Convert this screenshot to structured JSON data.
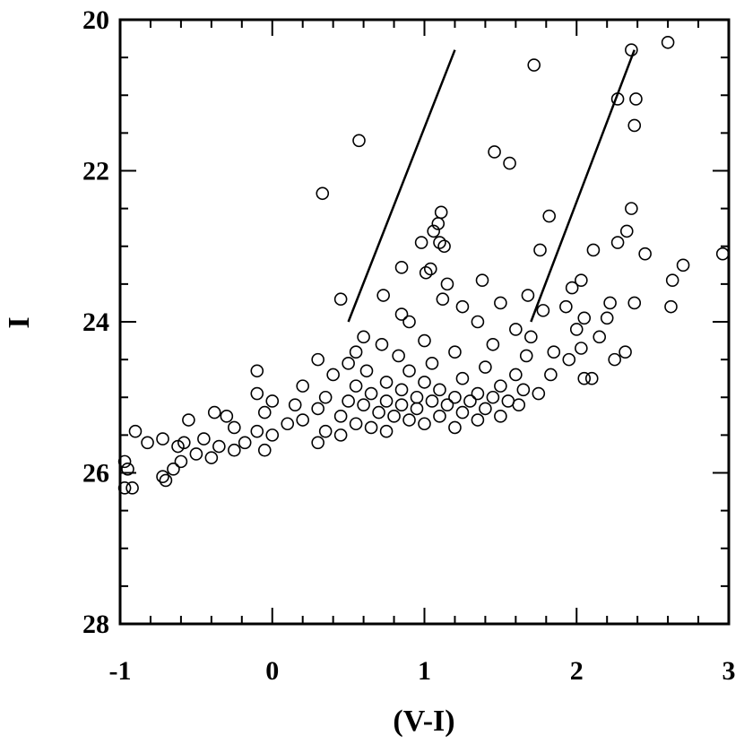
{
  "chart_data": {
    "type": "scatter",
    "title": "",
    "xlabel": "(V-I)",
    "ylabel": "I",
    "xlim": [
      -1,
      3
    ],
    "ylim": [
      28,
      20
    ],
    "y_inverted": true,
    "grid": false,
    "legend": "none",
    "xticks": [
      -1,
      0,
      1,
      2,
      3
    ],
    "xtick_labels": [
      "-1",
      "0",
      "1",
      "2",
      "3"
    ],
    "yticks": [
      20,
      22,
      24,
      26,
      28
    ],
    "ytick_labels": [
      "20",
      "22",
      "24",
      "26",
      "28"
    ],
    "marker": "open-circle",
    "reference_lines": [
      {
        "x": [
          0.5,
          1.2
        ],
        "y": [
          24.0,
          20.4
        ]
      },
      {
        "x": [
          1.7,
          2.38
        ],
        "y": [
          24.0,
          20.4
        ]
      }
    ],
    "points": [
      [
        2.6,
        20.3
      ],
      [
        2.36,
        20.4
      ],
      [
        1.72,
        20.6
      ],
      [
        2.27,
        21.05
      ],
      [
        2.39,
        21.05
      ],
      [
        2.38,
        21.4
      ],
      [
        0.57,
        21.6
      ],
      [
        1.46,
        21.75
      ],
      [
        1.56,
        21.9
      ],
      [
        0.33,
        22.3
      ],
      [
        1.82,
        22.6
      ],
      [
        2.36,
        22.5
      ],
      [
        1.11,
        22.55
      ],
      [
        1.09,
        22.7
      ],
      [
        1.06,
        22.8
      ],
      [
        1.1,
        22.95
      ],
      [
        0.98,
        22.95
      ],
      [
        1.13,
        23.0
      ],
      [
        1.76,
        23.05
      ],
      [
        2.11,
        23.05
      ],
      [
        2.33,
        22.8
      ],
      [
        2.27,
        22.95
      ],
      [
        2.45,
        23.1
      ],
      [
        2.96,
        23.1
      ],
      [
        2.7,
        23.25
      ],
      [
        1.04,
        23.3
      ],
      [
        0.85,
        23.28
      ],
      [
        1.01,
        23.35
      ],
      [
        2.63,
        23.45
      ],
      [
        2.03,
        23.45
      ],
      [
        1.97,
        23.55
      ],
      [
        1.38,
        23.45
      ],
      [
        1.15,
        23.5
      ],
      [
        0.73,
        23.65
      ],
      [
        1.12,
        23.7
      ],
      [
        1.68,
        23.65
      ],
      [
        2.38,
        23.75
      ],
      [
        2.22,
        23.75
      ],
      [
        0.45,
        23.7
      ],
      [
        1.5,
        23.75
      ],
      [
        1.25,
        23.8
      ],
      [
        2.62,
        23.8
      ],
      [
        1.78,
        23.85
      ],
      [
        0.85,
        23.9
      ],
      [
        2.05,
        23.95
      ],
      [
        2.2,
        23.95
      ],
      [
        1.93,
        23.8
      ],
      [
        1.35,
        24.0
      ],
      [
        0.9,
        24.0
      ],
      [
        1.6,
        24.1
      ],
      [
        2.0,
        24.1
      ],
      [
        1.7,
        24.2
      ],
      [
        0.6,
        24.2
      ],
      [
        2.15,
        24.2
      ],
      [
        1.0,
        24.25
      ],
      [
        1.45,
        24.3
      ],
      [
        0.72,
        24.3
      ],
      [
        2.03,
        24.35
      ],
      [
        0.55,
        24.4
      ],
      [
        1.85,
        24.4
      ],
      [
        1.2,
        24.4
      ],
      [
        0.83,
        24.45
      ],
      [
        2.32,
        24.4
      ],
      [
        1.67,
        24.45
      ],
      [
        1.95,
        24.5
      ],
      [
        0.3,
        24.5
      ],
      [
        0.5,
        24.55
      ],
      [
        2.25,
        24.5
      ],
      [
        1.05,
        24.55
      ],
      [
        1.4,
        24.6
      ],
      [
        0.62,
        24.65
      ],
      [
        0.9,
        24.65
      ],
      [
        1.6,
        24.7
      ],
      [
        1.83,
        24.7
      ],
      [
        -0.1,
        24.65
      ],
      [
        2.05,
        24.75
      ],
      [
        2.1,
        24.75
      ],
      [
        0.4,
        24.7
      ],
      [
        1.25,
        24.75
      ],
      [
        0.75,
        24.8
      ],
      [
        1.0,
        24.8
      ],
      [
        1.5,
        24.85
      ],
      [
        0.55,
        24.85
      ],
      [
        1.65,
        24.9
      ],
      [
        0.2,
        24.85
      ],
      [
        0.85,
        24.9
      ],
      [
        1.1,
        24.9
      ],
      [
        1.35,
        24.95
      ],
      [
        -0.1,
        24.95
      ],
      [
        0.65,
        24.95
      ],
      [
        1.75,
        24.95
      ],
      [
        0.95,
        25.0
      ],
      [
        1.2,
        25.0
      ],
      [
        0.35,
        25.0
      ],
      [
        1.45,
        25.0
      ],
      [
        0.75,
        25.05
      ],
      [
        0.5,
        25.05
      ],
      [
        1.05,
        25.05
      ],
      [
        1.3,
        25.05
      ],
      [
        1.55,
        25.05
      ],
      [
        1.62,
        25.1
      ],
      [
        0.0,
        25.05
      ],
      [
        0.85,
        25.1
      ],
      [
        0.15,
        25.1
      ],
      [
        1.15,
        25.1
      ],
      [
        0.6,
        25.1
      ],
      [
        1.4,
        25.15
      ],
      [
        0.95,
        25.15
      ],
      [
        0.3,
        25.15
      ],
      [
        1.25,
        25.2
      ],
      [
        0.7,
        25.2
      ],
      [
        -0.05,
        25.2
      ],
      [
        1.5,
        25.25
      ],
      [
        0.8,
        25.25
      ],
      [
        0.45,
        25.25
      ],
      [
        1.1,
        25.25
      ],
      [
        -0.38,
        25.2
      ],
      [
        -0.3,
        25.25
      ],
      [
        0.2,
        25.3
      ],
      [
        1.35,
        25.3
      ],
      [
        0.9,
        25.3
      ],
      [
        1.0,
        25.35
      ],
      [
        0.55,
        25.35
      ],
      [
        -0.55,
        25.3
      ],
      [
        0.1,
        25.35
      ],
      [
        0.65,
        25.4
      ],
      [
        1.2,
        25.4
      ],
      [
        -0.25,
        25.4
      ],
      [
        0.35,
        25.45
      ],
      [
        -0.9,
        25.45
      ],
      [
        -0.1,
        25.45
      ],
      [
        0.75,
        25.45
      ],
      [
        0.0,
        25.5
      ],
      [
        -0.72,
        25.55
      ],
      [
        0.45,
        25.5
      ],
      [
        -0.45,
        25.55
      ],
      [
        -0.58,
        25.6
      ],
      [
        -0.18,
        25.6
      ],
      [
        0.3,
        25.6
      ],
      [
        -0.82,
        25.6
      ],
      [
        -0.35,
        25.65
      ],
      [
        -0.62,
        25.65
      ],
      [
        -0.25,
        25.7
      ],
      [
        -0.05,
        25.7
      ],
      [
        -0.5,
        25.75
      ],
      [
        -0.4,
        25.8
      ],
      [
        -0.6,
        25.85
      ],
      [
        -0.97,
        25.85
      ],
      [
        -0.95,
        25.95
      ],
      [
        -0.65,
        25.95
      ],
      [
        -0.72,
        26.05
      ],
      [
        -0.7,
        26.1
      ],
      [
        -0.97,
        26.2
      ],
      [
        -0.92,
        26.2
      ]
    ]
  }
}
